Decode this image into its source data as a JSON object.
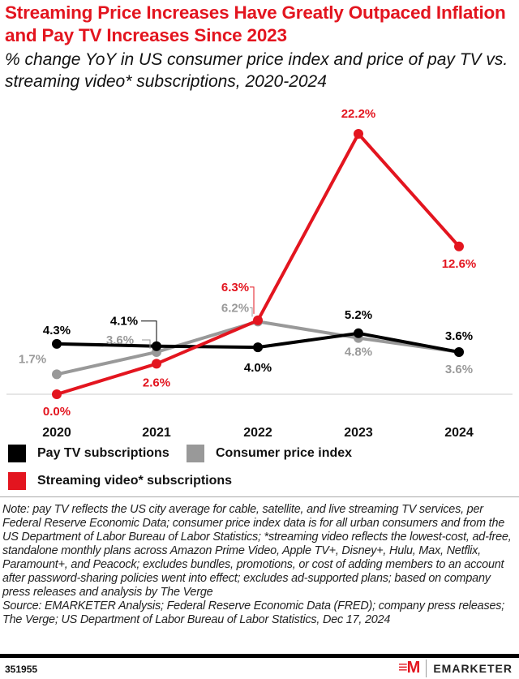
{
  "title": "Streaming Price Increases Have Greatly Outpaced Inflation and Pay TV Increases Since 2023",
  "subtitle": "% change YoY in US consumer price index and price of pay TV vs. streaming video* subscriptions, 2020-2024",
  "chart_data": {
    "type": "line",
    "categories": [
      "2020",
      "2021",
      "2022",
      "2023",
      "2024"
    ],
    "ylim": [
      0,
      22.2
    ],
    "grid": false,
    "legend_placement": "bottom",
    "series": [
      {
        "name": "Pay TV subscriptions",
        "color": "#000000",
        "values": [
          4.3,
          4.1,
          4.0,
          5.2,
          3.6
        ],
        "labels": [
          "4.3%",
          "4.1%",
          "4.0%",
          "5.2%",
          "3.6%"
        ]
      },
      {
        "name": "Consumer price index",
        "color": "#999999",
        "values": [
          1.7,
          3.6,
          6.2,
          4.8,
          3.6
        ],
        "labels": [
          "1.7%",
          "3.6%",
          "6.2%",
          "4.8%",
          "3.6%"
        ]
      },
      {
        "name": "Streaming video* subscriptions",
        "color": "#e3151f",
        "values": [
          0.0,
          2.6,
          6.3,
          22.2,
          12.6
        ],
        "labels": [
          "0.0%",
          "2.6%",
          "6.3%",
          "22.2%",
          "12.6%"
        ]
      }
    ]
  },
  "notes": "Note: pay TV reflects the US city average for cable, satellite, and live streaming TV services, per Federal Reserve Economic Data; consumer price index data is for all urban consumers and from the US Department of Labor Bureau of Labor Statistics; *streaming video reflects the lowest-cost, ad-free, standalone monthly plans across Amazon Prime Video, Apple TV+, Disney+, Hulu, Max, Netflix, Paramount+, and Peacock; excludes bundles, promotions, or cost of adding members to an account after password-sharing policies went into effect; excludes ad-supported plans; based on company press releases and analysis by The Verge",
  "source": "Source: EMARKETER Analysis; Federal Reserve Economic Data (FRED); company press releases; The Verge; US Department of Labor Bureau of Labor Statistics, Dec 17, 2024",
  "footer": {
    "chart_id": "351955",
    "logo_mark": "EM",
    "brand": "EMARKETER"
  }
}
